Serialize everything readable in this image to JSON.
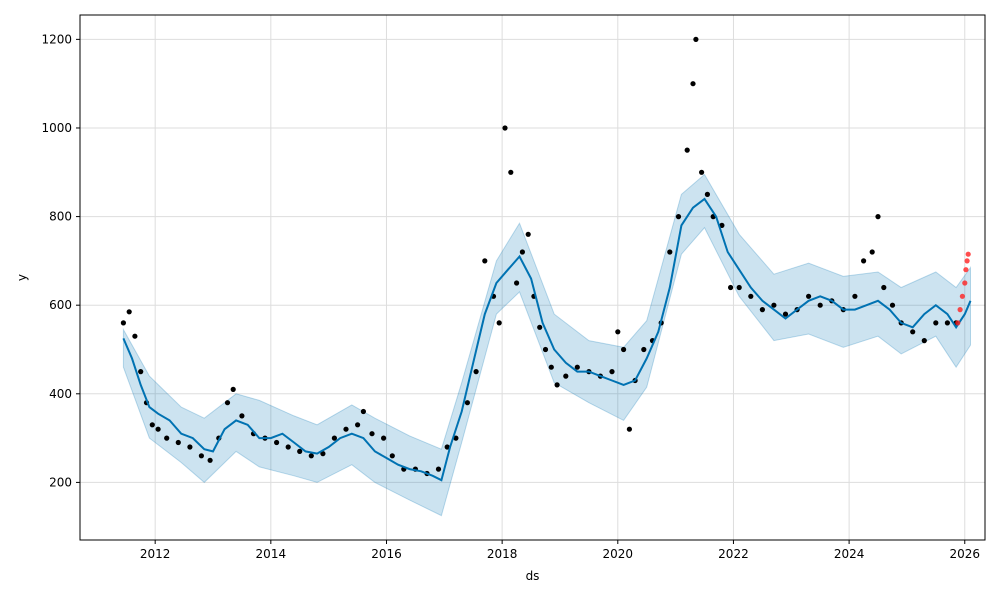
{
  "chart_data": {
    "type": "line",
    "xlabel": "ds",
    "ylabel": "y",
    "xlim": [
      2010.7,
      2026.35
    ],
    "ylim": [
      70,
      1255
    ],
    "grid": true,
    "x_ticks": [
      2012,
      2014,
      2016,
      2018,
      2020,
      2022,
      2024,
      2026
    ],
    "x_tick_labels": [
      "2012",
      "2014",
      "2016",
      "2018",
      "2020",
      "2022",
      "2024",
      "2026"
    ],
    "y_ticks": [
      200,
      400,
      600,
      800,
      1000,
      1200
    ],
    "y_tick_labels": [
      "200",
      "400",
      "600",
      "800",
      "1000",
      "1200"
    ],
    "colors": {
      "forecast_line": "#0072B2",
      "uncertainty_band": "#0072B2",
      "observed_points": "#000000",
      "recent_points": "#ff2020",
      "grid": "#dddddd"
    },
    "series": [
      {
        "role": "forecast",
        "x": [
          2011.45,
          2011.6,
          2011.75,
          2011.9,
          2012.05,
          2012.25,
          2012.45,
          2012.65,
          2012.85,
          2013.0,
          2013.2,
          2013.4,
          2013.6,
          2013.8,
          2014.0,
          2014.2,
          2014.4,
          2014.6,
          2014.8,
          2015.0,
          2015.2,
          2015.4,
          2015.6,
          2015.8,
          2016.0,
          2016.2,
          2016.4,
          2016.6,
          2016.8,
          2016.95,
          2017.1,
          2017.3,
          2017.5,
          2017.7,
          2017.9,
          2018.1,
          2018.3,
          2018.5,
          2018.7,
          2018.9,
          2019.1,
          2019.3,
          2019.5,
          2019.7,
          2019.9,
          2020.1,
          2020.3,
          2020.5,
          2020.7,
          2020.9,
          2021.1,
          2021.3,
          2021.5,
          2021.7,
          2021.9,
          2022.1,
          2022.3,
          2022.5,
          2022.7,
          2022.9,
          2023.1,
          2023.3,
          2023.5,
          2023.7,
          2023.9,
          2024.1,
          2024.3,
          2024.5,
          2024.7,
          2024.9,
          2025.1,
          2025.3,
          2025.5,
          2025.7,
          2025.85,
          2026.0,
          2026.1
        ],
        "y": [
          525,
          480,
          420,
          370,
          355,
          340,
          310,
          300,
          275,
          270,
          320,
          340,
          330,
          300,
          300,
          310,
          290,
          270,
          265,
          280,
          300,
          310,
          300,
          270,
          255,
          240,
          230,
          225,
          215,
          205,
          280,
          360,
          470,
          580,
          650,
          680,
          710,
          660,
          560,
          500,
          470,
          450,
          450,
          440,
          430,
          420,
          430,
          480,
          540,
          640,
          780,
          820,
          840,
          800,
          720,
          680,
          640,
          610,
          590,
          570,
          590,
          610,
          620,
          610,
          590,
          590,
          600,
          610,
          590,
          560,
          550,
          580,
          600,
          580,
          550,
          580,
          610
        ]
      },
      {
        "role": "uncertainty",
        "x": [
          2011.45,
          2011.9,
          2012.45,
          2012.85,
          2013.4,
          2013.8,
          2014.4,
          2014.8,
          2015.4,
          2015.8,
          2016.4,
          2016.95,
          2017.3,
          2017.9,
          2018.3,
          2018.9,
          2019.5,
          2020.1,
          2020.5,
          2021.1,
          2021.5,
          2022.1,
          2022.7,
          2023.3,
          2023.9,
          2024.5,
          2024.9,
          2025.5,
          2025.85,
          2026.1
        ],
        "upper": [
          545,
          440,
          370,
          345,
          400,
          385,
          350,
          330,
          375,
          345,
          305,
          275,
          425,
          700,
          785,
          580,
          520,
          505,
          565,
          850,
          895,
          760,
          670,
          695,
          665,
          675,
          640,
          675,
          640,
          685
        ],
        "lower": [
          460,
          300,
          245,
          200,
          270,
          235,
          215,
          200,
          240,
          200,
          160,
          125,
          290,
          580,
          630,
          425,
          380,
          340,
          415,
          715,
          775,
          620,
          520,
          535,
          505,
          530,
          490,
          530,
          460,
          510
        ]
      },
      {
        "role": "observed",
        "x": [
          2011.45,
          2011.55,
          2011.65,
          2011.75,
          2011.85,
          2011.95,
          2012.05,
          2012.2,
          2012.4,
          2012.6,
          2012.8,
          2012.95,
          2013.1,
          2013.25,
          2013.35,
          2013.5,
          2013.7,
          2013.9,
          2014.1,
          2014.3,
          2014.5,
          2014.7,
          2014.9,
          2015.1,
          2015.3,
          2015.5,
          2015.6,
          2015.75,
          2015.95,
          2016.1,
          2016.3,
          2016.5,
          2016.7,
          2016.9,
          2017.05,
          2017.2,
          2017.4,
          2017.55,
          2017.7,
          2017.85,
          2017.95,
          2018.05,
          2018.15,
          2018.25,
          2018.35,
          2018.45,
          2018.55,
          2018.65,
          2018.75,
          2018.85,
          2018.95,
          2019.1,
          2019.3,
          2019.5,
          2019.7,
          2019.9,
          2020.0,
          2020.1,
          2020.2,
          2020.3,
          2020.45,
          2020.6,
          2020.75,
          2020.9,
          2021.05,
          2021.2,
          2021.3,
          2021.35,
          2021.45,
          2021.55,
          2021.65,
          2021.8,
          2021.95,
          2022.1,
          2022.3,
          2022.5,
          2022.7,
          2022.9,
          2023.1,
          2023.3,
          2023.5,
          2023.7,
          2023.9,
          2024.1,
          2024.25,
          2024.4,
          2024.5,
          2024.6,
          2024.75,
          2024.9,
          2025.1,
          2025.3,
          2025.5,
          2025.7,
          2025.85
        ],
        "y": [
          560,
          585,
          530,
          450,
          380,
          330,
          320,
          300,
          290,
          280,
          260,
          250,
          300,
          380,
          410,
          350,
          310,
          300,
          290,
          280,
          270,
          260,
          265,
          300,
          320,
          330,
          360,
          310,
          300,
          260,
          230,
          230,
          220,
          230,
          280,
          300,
          380,
          450,
          700,
          620,
          560,
          1000,
          900,
          650,
          720,
          760,
          620,
          550,
          500,
          460,
          420,
          440,
          460,
          450,
          440,
          450,
          540,
          500,
          320,
          430,
          500,
          520,
          560,
          720,
          800,
          950,
          1100,
          1200,
          900,
          850,
          800,
          780,
          640,
          640,
          620,
          590,
          600,
          580,
          590,
          620,
          600,
          610,
          590,
          620,
          700,
          720,
          800,
          640,
          600,
          560,
          540,
          520,
          560,
          560,
          560
        ]
      },
      {
        "role": "recent",
        "x": [
          2025.88,
          2025.92,
          2025.96,
          2026.0,
          2026.02,
          2026.04,
          2026.06
        ],
        "y": [
          560,
          590,
          620,
          650,
          680,
          700,
          715
        ]
      }
    ]
  }
}
